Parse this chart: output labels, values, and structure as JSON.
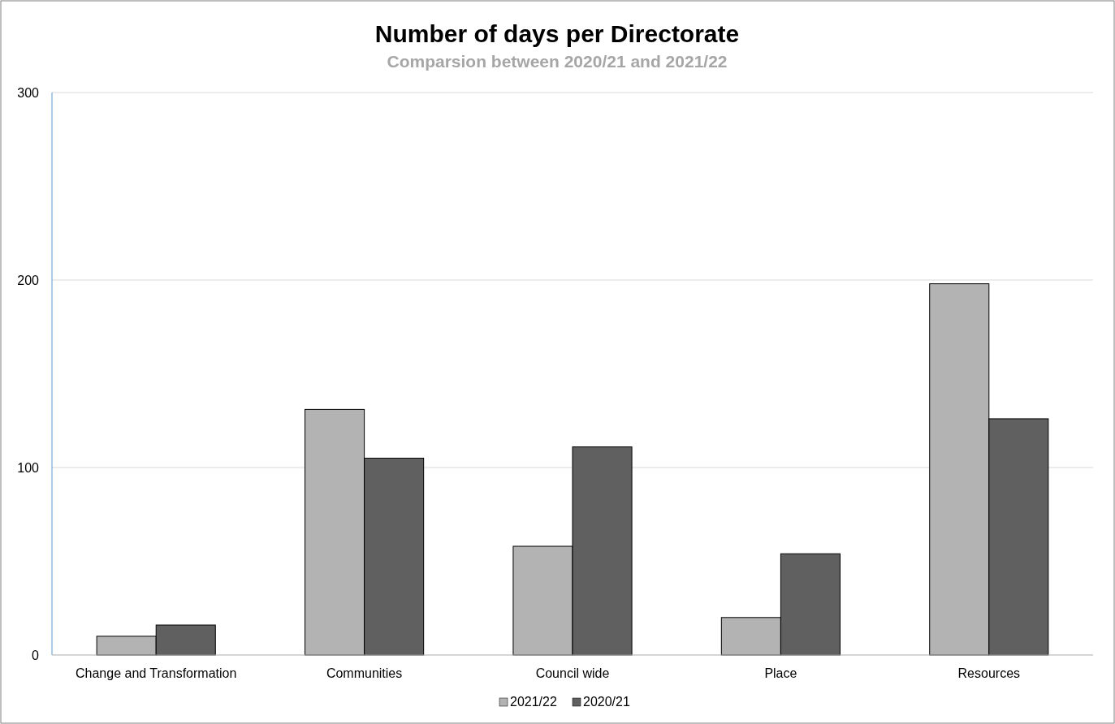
{
  "chart_data": {
    "type": "bar",
    "title": "Number of days per Directorate",
    "subtitle": "Comparsion between 2020/21 and 2021/22",
    "categories": [
      "Change and Transformation",
      "Communities",
      "Council wide",
      "Place",
      "Resources"
    ],
    "series": [
      {
        "name": "2021/22",
        "color": "#b3b3b3",
        "values": [
          10,
          131,
          58,
          20,
          198
        ]
      },
      {
        "name": "2020/21",
        "color": "#606060",
        "values": [
          16,
          105,
          111,
          54,
          126
        ]
      }
    ],
    "ylim": [
      0,
      300
    ],
    "yticks": [
      0,
      100,
      200,
      300
    ],
    "grid": "y",
    "legend": "bottom"
  }
}
